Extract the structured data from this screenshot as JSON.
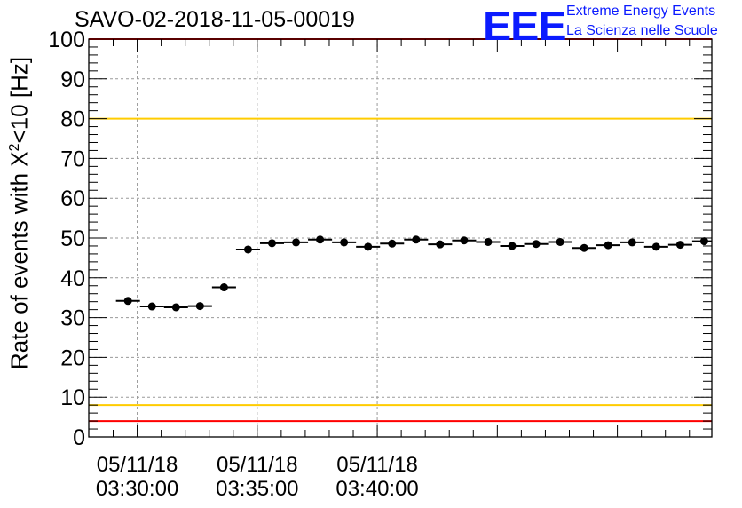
{
  "chart_data": {
    "type": "scatter",
    "title": "SAVO-02-2018-11-05-00019",
    "ylabel": {
      "prefix": "Rate of events with X",
      "superscript": "2",
      "suffix": "<10 [Hz]"
    },
    "xlabel": "",
    "ylim": [
      0,
      100
    ],
    "y_ticks": [
      0,
      10,
      20,
      30,
      40,
      50,
      60,
      70,
      80,
      90,
      100
    ],
    "x_range_seconds": [
      -121,
      1436
    ],
    "x_ticks": [
      {
        "t": 0,
        "date": "05/11/18",
        "time": "03:30:00"
      },
      {
        "t": 300,
        "date": "05/11/18",
        "time": "03:35:00"
      },
      {
        "t": 600,
        "date": "05/11/18",
        "time": "03:40:00"
      }
    ],
    "grid": true,
    "reference_lines": [
      {
        "value": 4,
        "color": "#ff0000"
      },
      {
        "value": 8,
        "color": "#ffcc00"
      },
      {
        "value": 80,
        "color": "#ffcc00"
      },
      {
        "value": 100,
        "color": "#ff0000"
      }
    ],
    "series": [
      {
        "color": "#000000",
        "bin_width_seconds": 60,
        "x": [
          -23,
          37,
          97,
          157,
          217,
          277,
          337,
          397,
          457,
          517,
          577,
          637,
          697,
          757,
          817,
          877,
          937,
          997,
          1057,
          1117,
          1177,
          1237,
          1297,
          1357,
          1417
        ],
        "y": [
          34.2,
          32.8,
          32.6,
          32.9,
          37.6,
          47.1,
          48.7,
          48.9,
          49.6,
          48.9,
          47.8,
          48.6,
          49.6,
          48.4,
          49.4,
          49.0,
          48.0,
          48.5,
          49.0,
          47.5,
          48.2,
          48.9,
          47.8,
          48.3,
          49.2
        ]
      }
    ]
  },
  "header": {
    "logo": "EEE",
    "org_line1": "Extreme Energy Events",
    "org_line2": "La Scienza nelle Scuole"
  }
}
